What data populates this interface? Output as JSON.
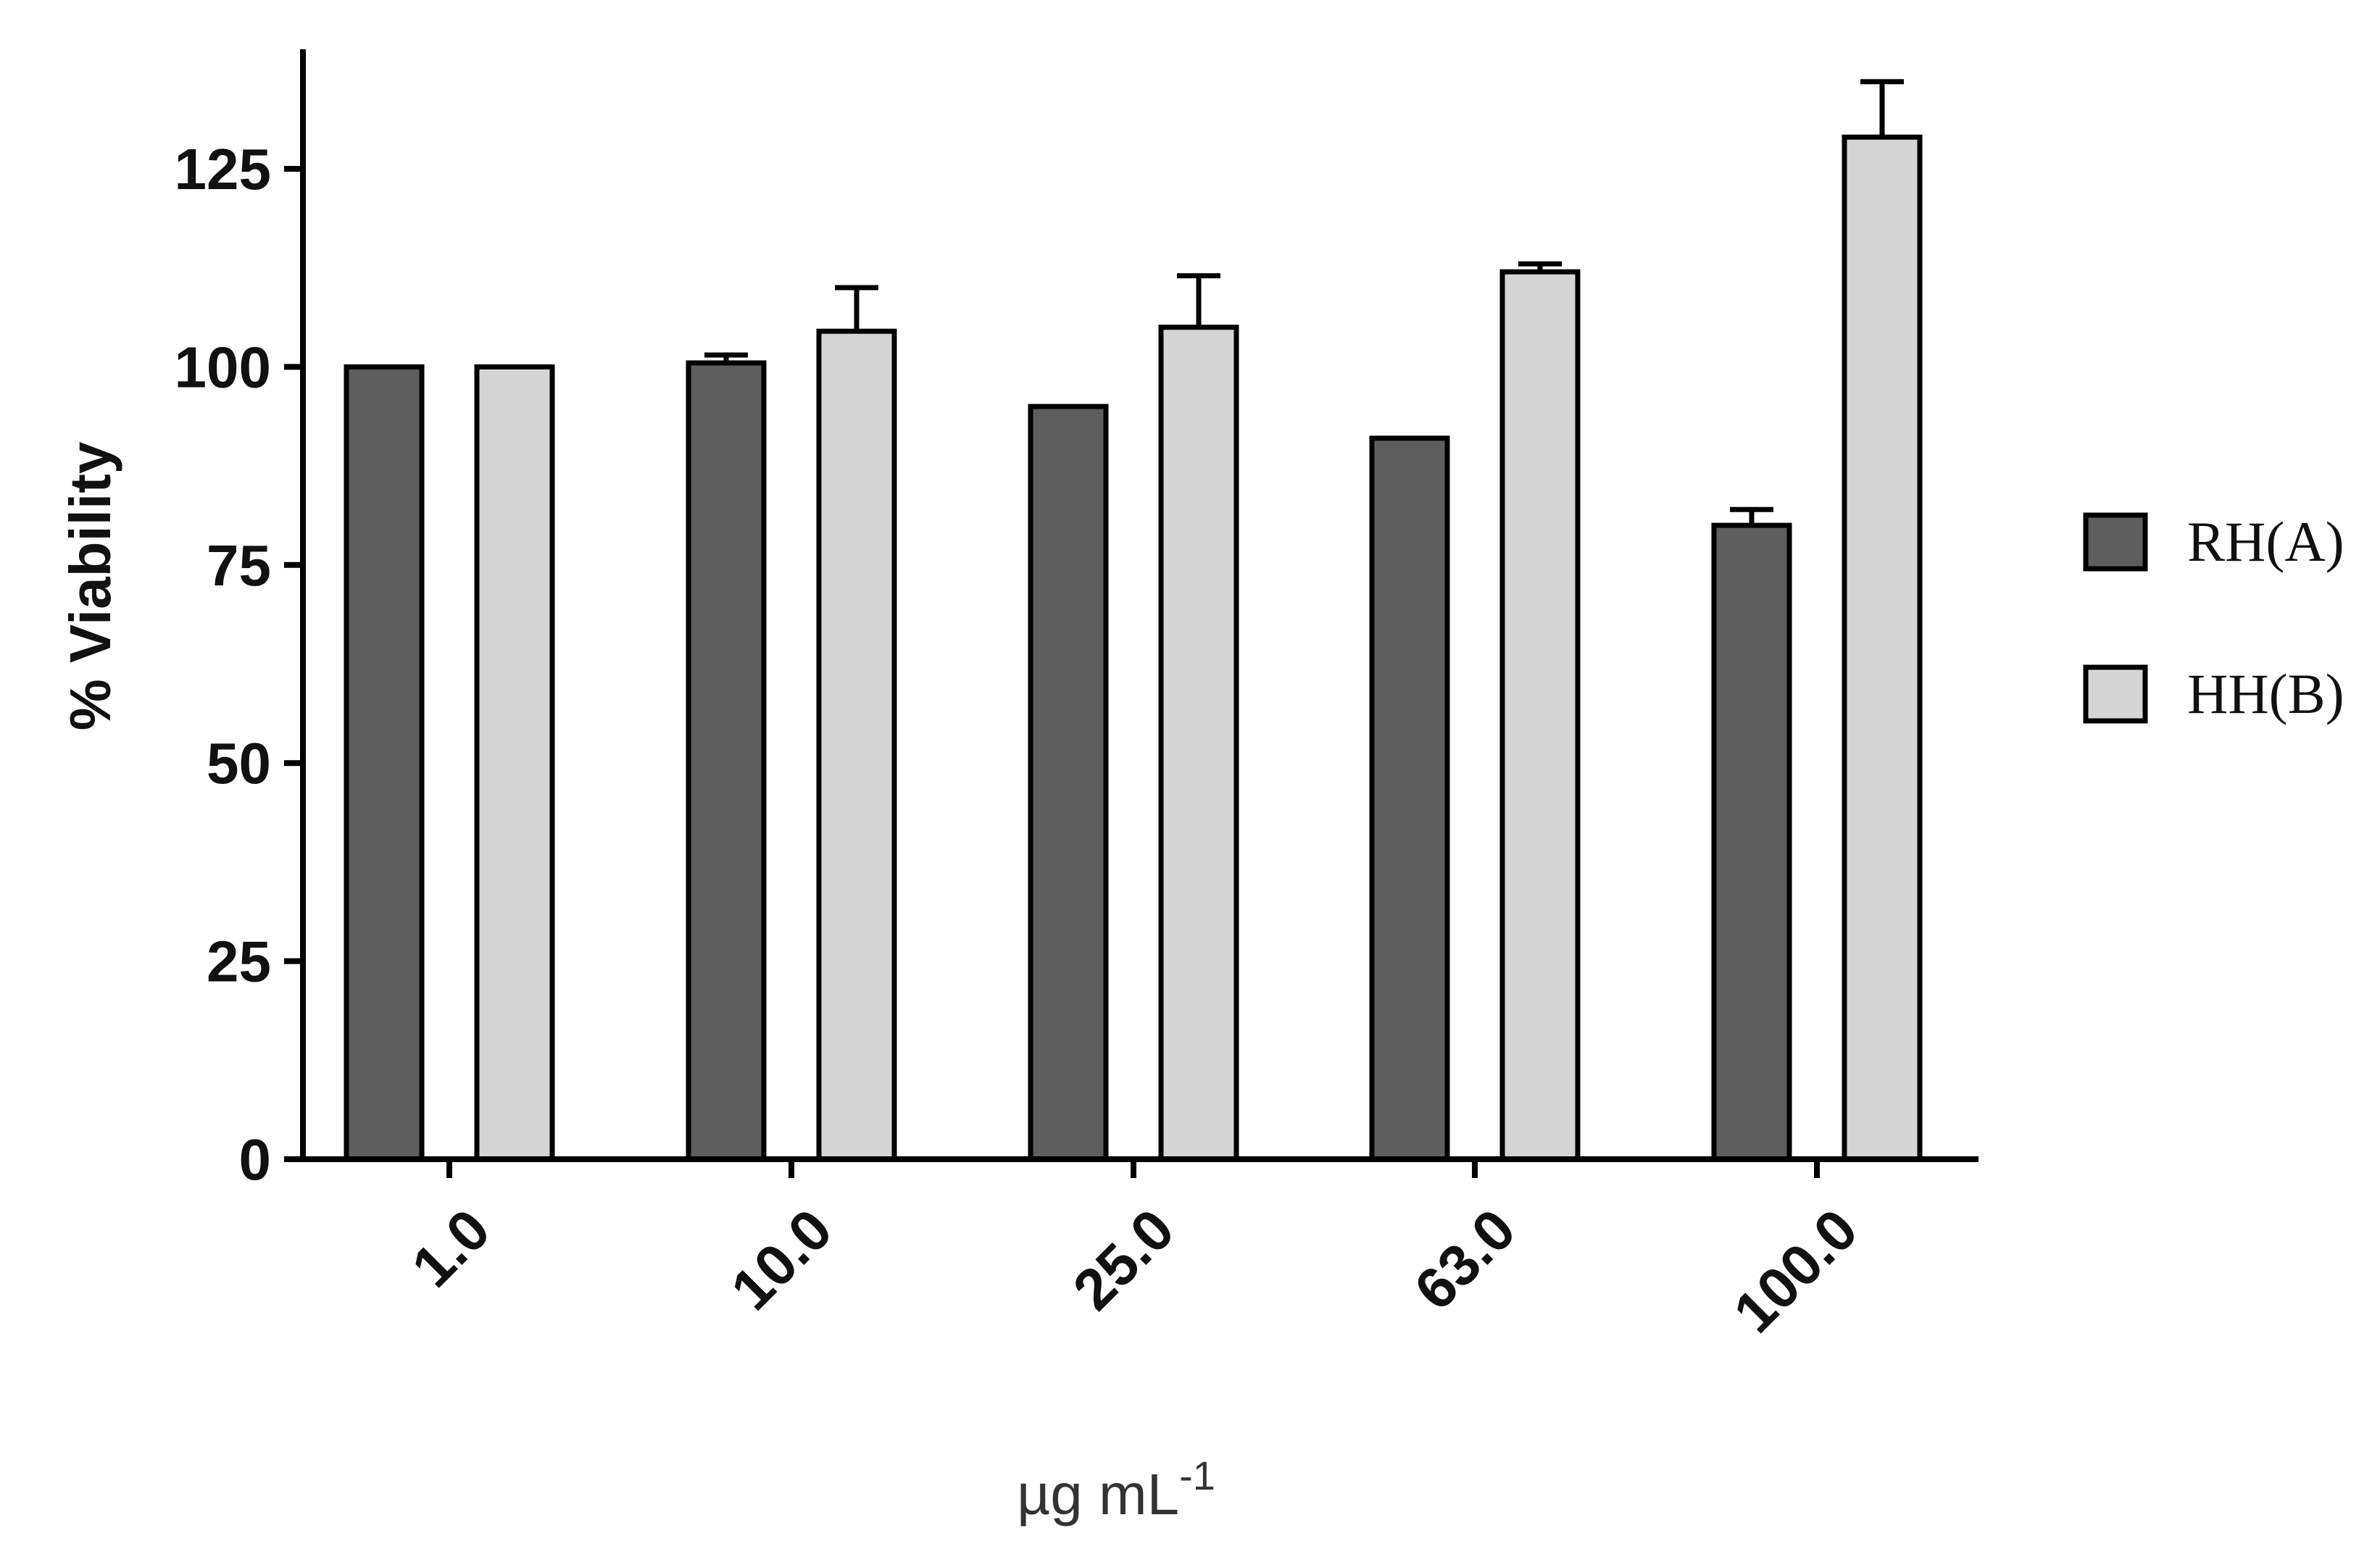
{
  "chart_data": {
    "type": "bar",
    "title": "",
    "xlabel": "µg mL",
    "xlabel_superscript": "-1",
    "ylabel": "% Viability",
    "ylim": [
      0,
      140
    ],
    "yticks": [
      0,
      25,
      50,
      75,
      100,
      125
    ],
    "categories": [
      "1.0",
      "10.0",
      "25.0",
      "63.0",
      "100.0"
    ],
    "legend_position": "right",
    "grid": false,
    "series": [
      {
        "name": "RH(A)",
        "color": "#5e5e5e",
        "values": [
          100,
          100.5,
          95,
          91,
          80
        ],
        "errors": [
          0,
          1,
          0,
          0,
          2
        ]
      },
      {
        "name": "HH(B)",
        "color": "#d5d5d5",
        "values": [
          100,
          104.5,
          105,
          112,
          129
        ],
        "errors": [
          0,
          5.5,
          6.5,
          1,
          7
        ]
      }
    ]
  }
}
